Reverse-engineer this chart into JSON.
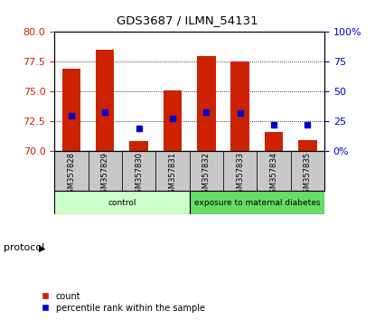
{
  "title": "GDS3687 / ILMN_54131",
  "samples": [
    "GSM357828",
    "GSM357829",
    "GSM357830",
    "GSM357831",
    "GSM357832",
    "GSM357833",
    "GSM357834",
    "GSM357835"
  ],
  "bar_tops": [
    76.9,
    78.5,
    70.8,
    75.1,
    78.0,
    77.5,
    71.6,
    70.9
  ],
  "bar_bottoms": [
    70.0,
    70.0,
    70.0,
    70.0,
    70.0,
    70.0,
    70.0,
    70.0
  ],
  "percentile_values": [
    73.0,
    73.3,
    71.9,
    72.7,
    73.3,
    73.2,
    72.2,
    72.2
  ],
  "bar_color": "#cc2200",
  "percentile_color": "#0000cc",
  "ylim_left": [
    70,
    80
  ],
  "ylim_right": [
    0,
    100
  ],
  "yticks_left": [
    70,
    72.5,
    75,
    77.5,
    80
  ],
  "yticks_right": [
    0,
    25,
    50,
    75,
    100
  ],
  "ytick_labels_right": [
    "0%",
    "25",
    "50",
    "75",
    "100%"
  ],
  "groups": [
    {
      "label": "control",
      "start": 0,
      "end": 4,
      "color": "#ccffcc"
    },
    {
      "label": "exposure to maternal diabetes",
      "start": 4,
      "end": 8,
      "color": "#66dd66"
    }
  ],
  "protocol_label": "protocol",
  "legend_count_label": "count",
  "legend_percentile_label": "percentile rank within the sample",
  "bg_color": "#ffffff",
  "plot_bg_color": "#ffffff",
  "grid_color": "#000000",
  "tick_label_color_left": "#cc2200",
  "tick_label_color_right": "#0000cc",
  "label_bg_color": "#c8c8c8",
  "label_border_color": "#888888"
}
